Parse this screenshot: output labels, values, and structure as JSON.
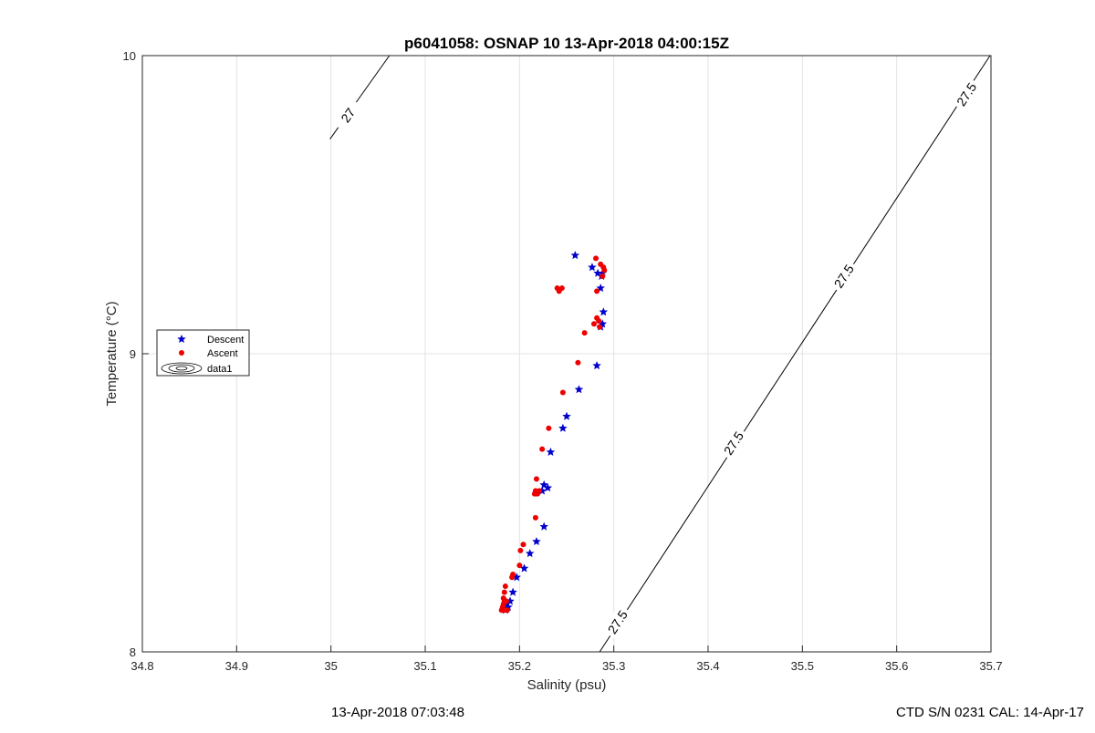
{
  "chart_data": {
    "type": "scatter",
    "title": "p6041058: OSNAP 10 13-Apr-2018 04:00:15Z",
    "xlabel": "Salinity (psu)",
    "ylabel": "Temperature (°C)",
    "xlim": [
      34.8,
      35.7
    ],
    "ylim": [
      8,
      10
    ],
    "x_ticks": [
      "34.8",
      "34.9",
      "35",
      "35.1",
      "35.2",
      "35.3",
      "35.4",
      "35.5",
      "35.6",
      "35.7"
    ],
    "y_ticks": [
      "8",
      "9",
      "10"
    ],
    "grid": true,
    "legend": {
      "placement": "left",
      "entries": [
        "Descent",
        "Ascent",
        "data1"
      ]
    },
    "series": [
      {
        "name": "Descent",
        "color": "#0000cc",
        "marker": "pentagram",
        "points": [
          [
            35.259,
            9.33
          ],
          [
            35.277,
            9.29
          ],
          [
            35.283,
            9.27
          ],
          [
            35.287,
            9.26
          ],
          [
            35.288,
            9.27
          ],
          [
            35.286,
            9.22
          ],
          [
            35.289,
            9.14
          ],
          [
            35.288,
            9.1
          ],
          [
            35.286,
            9.09
          ],
          [
            35.282,
            8.96
          ],
          [
            35.263,
            8.88
          ],
          [
            35.25,
            8.79
          ],
          [
            35.246,
            8.75
          ],
          [
            35.233,
            8.67
          ],
          [
            35.23,
            8.55
          ],
          [
            35.226,
            8.56
          ],
          [
            35.224,
            8.54
          ],
          [
            35.226,
            8.42
          ],
          [
            35.218,
            8.37
          ],
          [
            35.211,
            8.33
          ],
          [
            35.205,
            8.28
          ],
          [
            35.197,
            8.25
          ],
          [
            35.193,
            8.2
          ],
          [
            35.19,
            8.17
          ],
          [
            35.188,
            8.15
          ],
          [
            35.186,
            8.16
          ],
          [
            35.185,
            8.14
          ]
        ]
      },
      {
        "name": "Ascent",
        "color": "#ee0000",
        "marker": "circle",
        "points": [
          [
            35.281,
            9.32
          ],
          [
            35.286,
            9.3
          ],
          [
            35.289,
            9.29
          ],
          [
            35.29,
            9.28
          ],
          [
            35.288,
            9.26
          ],
          [
            35.245,
            9.22
          ],
          [
            35.242,
            9.21
          ],
          [
            35.24,
            9.22
          ],
          [
            35.282,
            9.21
          ],
          [
            35.282,
            9.12
          ],
          [
            35.284,
            9.11
          ],
          [
            35.279,
            9.1
          ],
          [
            35.285,
            9.09
          ],
          [
            35.269,
            9.07
          ],
          [
            35.262,
            8.97
          ],
          [
            35.246,
            8.87
          ],
          [
            35.231,
            8.75
          ],
          [
            35.224,
            8.68
          ],
          [
            35.218,
            8.58
          ],
          [
            35.217,
            8.54
          ],
          [
            35.219,
            8.53
          ],
          [
            35.216,
            8.53
          ],
          [
            35.221,
            8.54
          ],
          [
            35.217,
            8.45
          ],
          [
            35.204,
            8.36
          ],
          [
            35.201,
            8.34
          ],
          [
            35.2,
            8.29
          ],
          [
            35.193,
            8.26
          ],
          [
            35.192,
            8.25
          ],
          [
            35.185,
            8.22
          ],
          [
            35.184,
            8.2
          ],
          [
            35.183,
            8.18
          ],
          [
            35.184,
            8.17
          ],
          [
            35.186,
            8.17
          ],
          [
            35.183,
            8.16
          ],
          [
            35.182,
            8.15
          ],
          [
            35.184,
            8.14
          ],
          [
            35.187,
            8.14
          ],
          [
            35.181,
            8.14
          ]
        ]
      }
    ],
    "contours": [
      {
        "name": "data1",
        "levels": [
          {
            "label": "27",
            "line": [
              [
                34.999,
                9.72
              ],
              [
                35.062,
                10.0
              ]
            ],
            "label_positions": [
              [
                35.018,
                9.8
              ]
            ]
          },
          {
            "label": "27.5",
            "line": [
              [
                35.285,
                8.0
              ],
              [
                35.699,
                10.0
              ]
            ],
            "label_positions": [
              [
                35.304,
                8.1
              ],
              [
                35.427,
                8.7
              ],
              [
                35.544,
                9.26
              ],
              [
                35.674,
                9.87
              ]
            ]
          }
        ]
      }
    ]
  },
  "footer": {
    "timestamp": "13-Apr-2018 07:03:48",
    "ctd_info": "CTD S/N 0231  CAL: 14-Apr-17"
  }
}
